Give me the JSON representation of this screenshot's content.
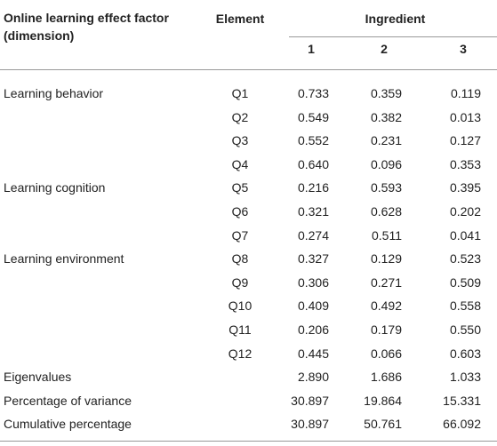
{
  "table": {
    "header": {
      "dimension": "Online learning effect factor (dimension)",
      "element": "Element",
      "ingredient": "Ingredient",
      "components": [
        "1",
        "2",
        "3"
      ]
    },
    "rows": [
      [
        "Learning behavior",
        "Q1",
        "0.733",
        "0.359",
        "0.119"
      ],
      [
        null,
        "Q2",
        "0.549",
        "0.382",
        "0.013"
      ],
      [
        null,
        "Q3",
        "0.552",
        "0.231",
        "0.127"
      ],
      [
        null,
        "Q4",
        "0.640",
        "0.096",
        "0.353"
      ],
      [
        "Learning cognition",
        "Q5",
        "0.216",
        "0.593",
        "0.395"
      ],
      [
        null,
        "Q6",
        "0.321",
        "0.628",
        "0.202"
      ],
      [
        null,
        "Q7",
        "0.274",
        "0.511",
        "0.041"
      ],
      [
        "Learning environment",
        "Q8",
        "0.327",
        "0.129",
        "0.523"
      ],
      [
        null,
        "Q9",
        "0.306",
        "0.271",
        "0.509"
      ],
      [
        null,
        "Q10",
        "0.409",
        "0.492",
        "0.558"
      ],
      [
        null,
        "Q11",
        "0.206",
        "0.179",
        "0.550"
      ],
      [
        null,
        "Q12",
        "0.445",
        "0.066",
        "0.603"
      ],
      [
        "Eigenvalues",
        null,
        "2.890",
        "1.686",
        "1.033"
      ],
      [
        "Percentage of variance",
        null,
        "30.897",
        "19.864",
        "15.331"
      ],
      [
        "Cumulative percentage",
        null,
        "30.897",
        "50.761",
        "66.092"
      ]
    ]
  }
}
